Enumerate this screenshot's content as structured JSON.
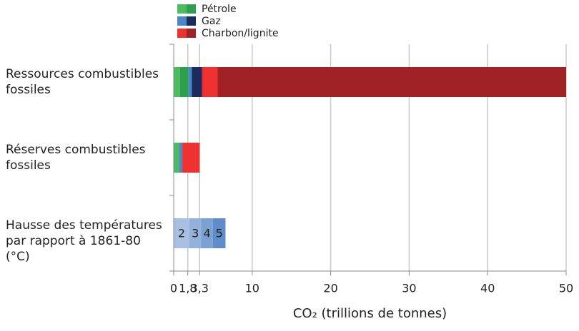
{
  "chart_data": {
    "type": "stacked_hbar",
    "categories": [
      "Ressources combustibles fossiles",
      "Réserves combustibles fossiles",
      "Hausse des températures par rapport à 1861-80 (°C)"
    ],
    "series": [
      {
        "name": "Pétrole",
        "colors": [
          "#4dbb5f",
          "#2e9e4f"
        ],
        "values": [
          [
            0.8,
            1.1
          ],
          [
            0.7,
            0
          ],
          null
        ]
      },
      {
        "name": "Gaz",
        "colors": [
          "#4a86c8",
          "#1b2b5e"
        ],
        "values": [
          [
            0.4,
            1.3
          ],
          [
            0.4,
            0
          ],
          null
        ]
      },
      {
        "name": "Charbon/lignite",
        "colors": [
          "#ee3030",
          "#a02226"
        ],
        "values": [
          [
            2.0,
            44.4
          ],
          [
            2.2,
            0
          ],
          null
        ]
      }
    ],
    "temperature": {
      "labels": [
        2,
        3,
        4,
        5
      ],
      "values": [
        2.0,
        1.5,
        1.5,
        1.6
      ],
      "colors": [
        "#a9c0e2",
        "#93b1db",
        "#7ba1d3",
        "#5e8dca"
      ]
    },
    "xlabel": "CO₂ (trillions de tonnes)",
    "xlim": [
      0,
      50
    ],
    "xticks": [
      0,
      {
        "value": 1.8,
        "label": "1,8"
      },
      {
        "value": 3.3,
        "label": "3,3"
      },
      10,
      20,
      30,
      40,
      50
    ],
    "grid": true
  }
}
